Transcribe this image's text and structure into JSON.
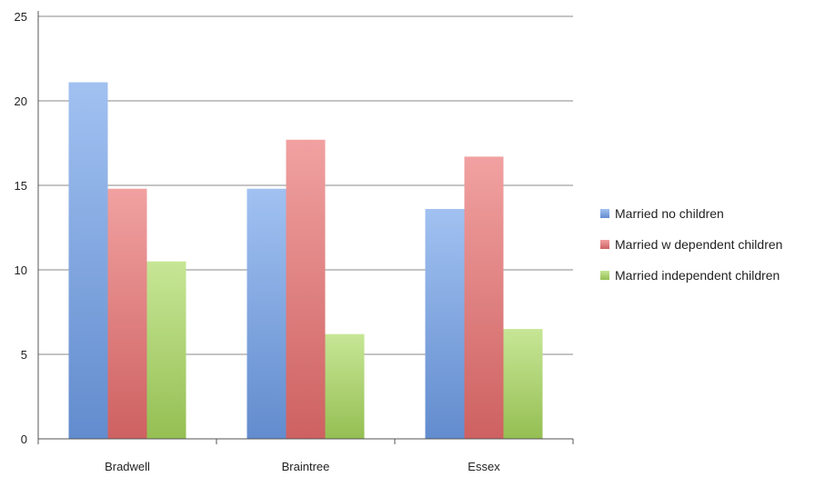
{
  "chart_data": {
    "type": "bar",
    "title": "",
    "xlabel": "",
    "ylabel": "",
    "categories": [
      "Bradwell",
      "Braintree",
      "Essex"
    ],
    "series": [
      {
        "name": "Married no children",
        "values": [
          21.1,
          14.8,
          13.6
        ],
        "color": "#6f9fea"
      },
      {
        "name": "Married w dependent children",
        "values": [
          14.8,
          17.7,
          16.7
        ],
        "color": "#ea6e6e"
      },
      {
        "name": "Married independent children",
        "values": [
          10.5,
          6.2,
          6.5
        ],
        "color": "#a9d95e"
      }
    ],
    "ylim": [
      0,
      25
    ],
    "yticks": [
      0,
      5,
      10,
      15,
      20,
      25
    ],
    "grid": true,
    "legend": "right"
  }
}
